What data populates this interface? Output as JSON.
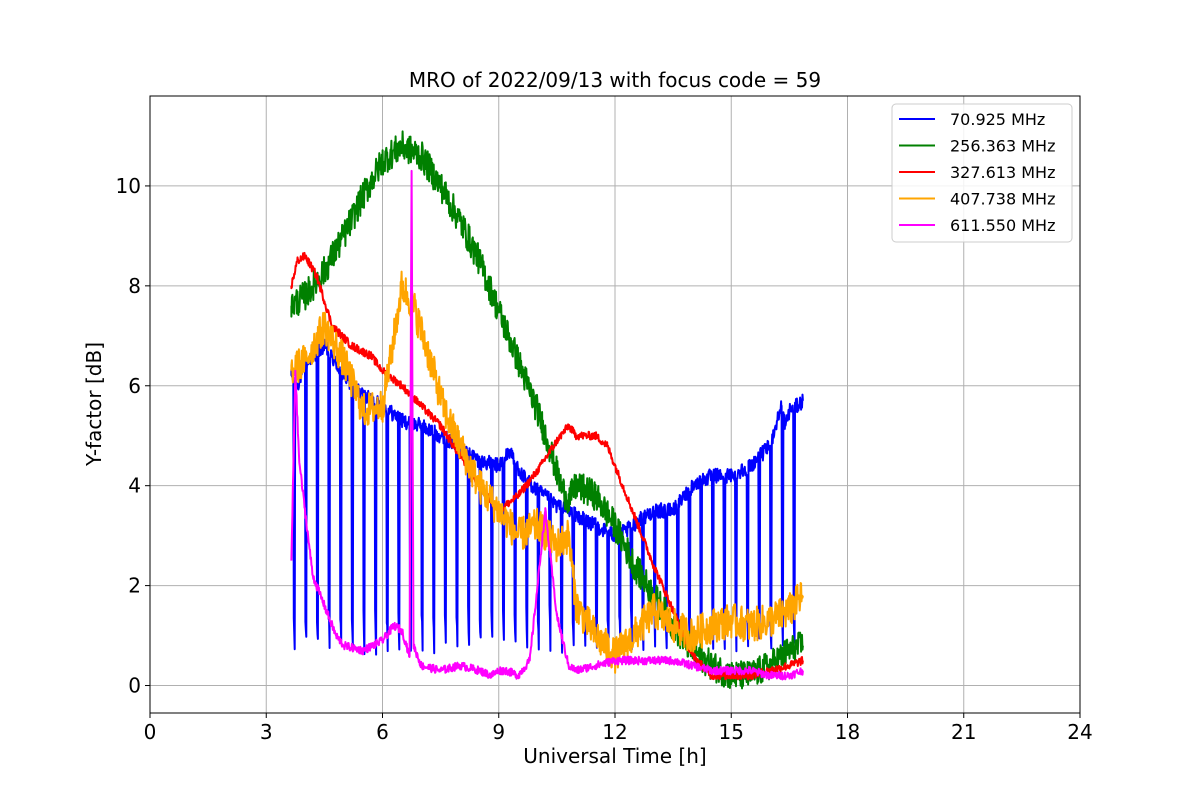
{
  "chart_data": {
    "type": "line",
    "title": "MRO of 2022/09/13 with focus code = 59",
    "xlabel": "Universal Time [h]",
    "ylabel": "Y-factor [dB]",
    "xlim": [
      0,
      24
    ],
    "ylim": [
      -0.55,
      11.8
    ],
    "xticks": [
      0,
      3,
      6,
      9,
      12,
      15,
      18,
      21,
      24
    ],
    "yticks": [
      0,
      2,
      4,
      6,
      8,
      10
    ],
    "grid": true,
    "legend_position": "top-right",
    "series": [
      {
        "name": "  70.925 MHz",
        "color": "#0000ff",
        "noise": 0.15,
        "dips": {
          "start": 3.7,
          "end": 16.7,
          "period": 0.3,
          "width": 0.04,
          "floor": 1.5
        },
        "x": [
          3.65,
          3.8,
          4.0,
          4.2,
          4.5,
          5.0,
          5.5,
          6.0,
          6.5,
          7.0,
          7.5,
          8.0,
          8.5,
          9.0,
          9.3,
          9.6,
          10.0,
          10.5,
          11.0,
          11.5,
          12.0,
          12.3,
          12.6,
          13.0,
          13.5,
          14.0,
          14.5,
          15.0,
          15.5,
          16.0,
          16.3,
          16.4,
          16.5,
          16.7,
          16.85
        ],
        "y": [
          6.2,
          6.0,
          6.4,
          6.6,
          6.8,
          6.2,
          5.8,
          5.6,
          5.3,
          5.2,
          5.0,
          4.8,
          4.5,
          4.4,
          4.7,
          4.2,
          3.9,
          3.6,
          3.4,
          3.2,
          3.0,
          3.1,
          3.3,
          3.5,
          3.5,
          4.0,
          4.2,
          4.2,
          4.4,
          4.8,
          5.6,
          5.2,
          5.5,
          5.6,
          5.7
        ]
      },
      {
        "name": "256.363 MHz",
        "color": "#008000",
        "noise": 0.3,
        "x": [
          3.65,
          4.0,
          4.5,
          5.0,
          5.5,
          6.0,
          6.5,
          7.0,
          7.5,
          8.0,
          8.5,
          9.0,
          9.5,
          10.0,
          10.3,
          10.6,
          10.8,
          11.0,
          11.5,
          12.0,
          12.5,
          13.0,
          13.5,
          14.0,
          14.5,
          15.0,
          15.5,
          16.0,
          16.5,
          16.85
        ],
        "y": [
          7.6,
          7.8,
          8.3,
          9.0,
          9.8,
          10.5,
          10.8,
          10.6,
          10.0,
          9.3,
          8.5,
          7.5,
          6.5,
          5.5,
          4.8,
          4.0,
          3.7,
          4.0,
          3.8,
          3.2,
          2.4,
          1.8,
          1.2,
          0.7,
          0.4,
          0.2,
          0.2,
          0.4,
          0.7,
          0.8
        ]
      },
      {
        "name": "327.613 MHz",
        "color": "#ff0000",
        "noise": 0.08,
        "x": [
          3.65,
          3.8,
          4.0,
          4.3,
          4.7,
          5.2,
          5.7,
          6.0,
          6.5,
          7.0,
          7.5,
          8.0,
          8.5,
          9.0,
          9.5,
          10.0,
          10.5,
          10.8,
          11.0,
          11.5,
          11.8,
          12.2,
          12.6,
          13.0,
          13.5,
          14.0,
          14.5,
          15.0,
          15.5,
          16.0,
          16.5,
          16.85
        ],
        "y": [
          8.0,
          8.5,
          8.6,
          8.2,
          7.2,
          6.8,
          6.6,
          6.3,
          6.0,
          5.6,
          5.2,
          4.6,
          4.0,
          3.5,
          3.8,
          4.3,
          4.9,
          5.2,
          5.0,
          5.0,
          4.8,
          4.0,
          3.2,
          2.4,
          1.5,
          0.6,
          0.2,
          0.2,
          0.2,
          0.3,
          0.4,
          0.5
        ]
      },
      {
        "name": "407.738 MHz",
        "color": "#ffa500",
        "noise": 0.35,
        "x": [
          3.65,
          4.0,
          4.5,
          5.0,
          5.5,
          6.0,
          6.2,
          6.5,
          6.8,
          7.2,
          7.6,
          8.0,
          8.5,
          9.0,
          9.5,
          10.0,
          10.5,
          10.8,
          11.0,
          11.5,
          12.0,
          12.5,
          13.0,
          13.5,
          14.0,
          14.5,
          15.0,
          15.5,
          16.0,
          16.5,
          16.85
        ],
        "y": [
          6.3,
          6.5,
          7.2,
          6.5,
          5.5,
          5.6,
          6.5,
          8.0,
          7.6,
          6.6,
          5.5,
          4.8,
          4.0,
          3.5,
          3.0,
          3.2,
          2.8,
          3.0,
          1.6,
          1.0,
          0.6,
          1.0,
          1.5,
          1.2,
          1.0,
          1.2,
          1.3,
          1.2,
          1.3,
          1.5,
          1.8
        ]
      },
      {
        "name": "611.550 MHz",
        "color": "#ff00ff",
        "noise": 0.08,
        "x": [
          3.65,
          3.75,
          3.85,
          4.0,
          4.2,
          4.5,
          4.8,
          5.0,
          5.5,
          6.0,
          6.3,
          6.5,
          6.7,
          6.75,
          6.8,
          7.0,
          7.5,
          8.0,
          8.5,
          8.8,
          9.0,
          9.2,
          9.5,
          9.8,
          10.0,
          10.2,
          10.5,
          10.8,
          11.0,
          11.5,
          12.0,
          12.5,
          13.0,
          13.5,
          14.0,
          14.5,
          15.0,
          15.5,
          16.0,
          16.5,
          16.85
        ],
        "y": [
          2.5,
          6.3,
          4.5,
          3.5,
          2.2,
          1.6,
          1.0,
          0.8,
          0.7,
          0.9,
          1.2,
          1.1,
          0.6,
          10.3,
          0.8,
          0.4,
          0.3,
          0.4,
          0.3,
          0.2,
          0.3,
          0.3,
          0.2,
          0.5,
          2.0,
          3.5,
          1.4,
          0.4,
          0.3,
          0.4,
          0.5,
          0.5,
          0.5,
          0.5,
          0.4,
          0.3,
          0.3,
          0.3,
          0.2,
          0.2,
          0.3
        ]
      }
    ]
  }
}
